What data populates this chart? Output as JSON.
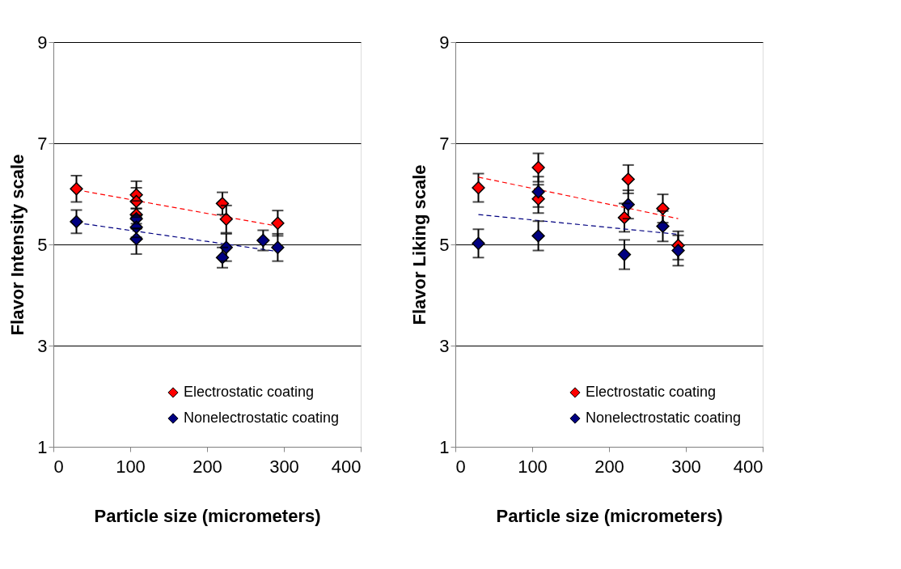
{
  "chart_data": [
    {
      "type": "scatter",
      "xlabel": "Particle size (micrometers)",
      "ylabel": "Flavor Intensity scale",
      "xlim": [
        0,
        400
      ],
      "ylim": [
        1,
        9
      ],
      "xticks": [
        0,
        100,
        200,
        300,
        400
      ],
      "yticks": [
        1,
        3,
        5,
        7,
        9
      ],
      "grid": "y",
      "legend": "bottom right",
      "marker": "diamond",
      "series": [
        {
          "name": "Electrostatic coating",
          "color": "#ff0000",
          "x": [
            30,
            108,
            108,
            108,
            220,
            225,
            292
          ],
          "values": [
            6.1,
            5.98,
            5.85,
            5.59,
            5.81,
            5.5,
            5.42
          ],
          "errors": [
            0.26,
            0.27,
            0.27,
            0.27,
            0.22,
            0.27,
            0.25
          ]
        },
        {
          "name": "Nonelectrostatic coating",
          "color": "#000080",
          "x": [
            30,
            108,
            108,
            108,
            220,
            225,
            273,
            292
          ],
          "values": [
            5.45,
            5.51,
            5.34,
            5.11,
            4.74,
            4.94,
            5.08,
            4.94
          ],
          "errors": [
            0.23,
            0.2,
            0.2,
            0.3,
            0.2,
            0.27,
            0.2,
            0.27
          ]
        },
        {
          "type": "line",
          "color": "#ff0000",
          "line_style": "dashed",
          "marker": "none",
          "x": [
            30,
            292
          ],
          "values": [
            6.08,
            5.36
          ]
        },
        {
          "type": "line",
          "color": "#000080",
          "line_style": "dashed",
          "marker": "none",
          "x": [
            30,
            292
          ],
          "values": [
            5.43,
            4.86
          ]
        }
      ]
    },
    {
      "type": "scatter",
      "xlabel": "Particle size (micrometers)",
      "ylabel": "Flavor Liking scale",
      "xlim": [
        0,
        400
      ],
      "ylim": [
        1,
        9
      ],
      "xticks": [
        0,
        100,
        200,
        300,
        400
      ],
      "yticks": [
        1,
        3,
        5,
        7,
        9
      ],
      "grid": "y",
      "legend": "bottom right",
      "marker": "diamond",
      "series": [
        {
          "name": "Electrostatic coating",
          "color": "#ff0000",
          "x": [
            30,
            108,
            108,
            225,
            220,
            270,
            290
          ],
          "values": [
            6.12,
            6.52,
            5.9,
            6.29,
            5.53,
            5.71,
            4.98
          ],
          "errors": [
            0.28,
            0.28,
            0.28,
            0.28,
            0.28,
            0.28,
            0.28
          ]
        },
        {
          "name": "Nonelectrostatic coating",
          "color": "#000080",
          "x": [
            30,
            108,
            108,
            225,
            220,
            270,
            290
          ],
          "values": [
            5.02,
            6.04,
            5.17,
            5.79,
            4.8,
            5.36,
            4.88
          ],
          "errors": [
            0.28,
            0.3,
            0.29,
            0.28,
            0.29,
            0.3,
            0.3
          ]
        },
        {
          "type": "line",
          "color": "#ff0000",
          "line_style": "dashed",
          "marker": "none",
          "x": [
            30,
            290
          ],
          "values": [
            6.33,
            5.51
          ]
        },
        {
          "type": "line",
          "color": "#000080",
          "line_style": "dashed",
          "marker": "none",
          "x": [
            30,
            290
          ],
          "values": [
            5.59,
            5.2
          ]
        }
      ]
    }
  ]
}
